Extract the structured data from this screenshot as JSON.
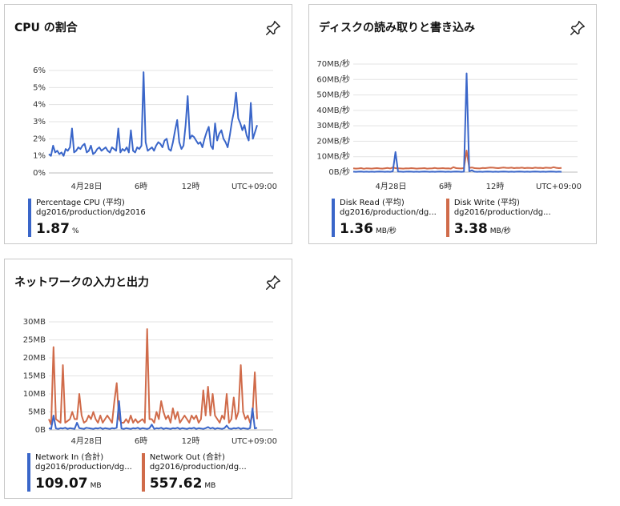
{
  "tiles": [
    {
      "title": "CPU の割合",
      "pin_icon": "pin-icon",
      "timezone": "UTC+09:00",
      "chart_data": {
        "type": "line",
        "x_ticks": [
          "4月28日",
          "6時",
          "12時"
        ],
        "y_ticks": [
          "6%",
          "5%",
          "4%",
          "3%",
          "2%",
          "1%",
          "0%"
        ],
        "ylim": [
          0,
          6
        ],
        "series": [
          {
            "name": "Percentage CPU (平均)",
            "color": "#3a66c9",
            "values": [
              1.1,
              1.0,
              1.6,
              1.2,
              1.3,
              1.1,
              1.2,
              1.0,
              1.4,
              1.3,
              1.5,
              2.6,
              1.2,
              1.3,
              1.5,
              1.4,
              1.6,
              1.7,
              1.2,
              1.3,
              1.6,
              1.1,
              1.2,
              1.4,
              1.5,
              1.3,
              1.4,
              1.5,
              1.3,
              1.2,
              1.5,
              1.4,
              1.3,
              2.6,
              1.2,
              1.4,
              1.3,
              1.5,
              1.2,
              2.5,
              1.3,
              1.2,
              1.5,
              1.4,
              1.6,
              5.9,
              1.8,
              1.3,
              1.4,
              1.5,
              1.3,
              1.6,
              1.8,
              1.7,
              1.5,
              1.9,
              2.0,
              1.4,
              1.3,
              1.8,
              2.5,
              3.1,
              1.8,
              1.4,
              1.6,
              2.8,
              4.5,
              2.0,
              2.2,
              2.1,
              1.9,
              1.7,
              1.8,
              1.5,
              2.0,
              2.4,
              2.7,
              1.6,
              1.4,
              2.9,
              1.9,
              2.3,
              2.5,
              2.0,
              1.8,
              1.5,
              2.2,
              3.0,
              3.6,
              4.7,
              3.2,
              2.9,
              2.5,
              2.8,
              2.2,
              1.9,
              4.1,
              2.0,
              2.4,
              2.8
            ]
          }
        ]
      },
      "legend": [
        {
          "name": "Percentage CPU (平均)",
          "resource": "dg2016/production/dg2016",
          "value": "1.87",
          "unit": "%",
          "color": "#3a66c9"
        }
      ]
    },
    {
      "title": "ディスクの読み取りと書き込み",
      "pin_icon": "pin-icon",
      "timezone": "UTC+09:00",
      "chart_data": {
        "type": "line",
        "x_ticks": [
          "4月28日",
          "6時",
          "12時"
        ],
        "y_ticks": [
          "70MB/秒",
          "60MB/秒",
          "50MB/秒",
          "40MB/秒",
          "30MB/秒",
          "20MB/秒",
          "10MB/秒",
          "0B/秒"
        ],
        "ylim": [
          0,
          70
        ],
        "series": [
          {
            "name": "Disk Read (平均)",
            "color": "#3a66c9",
            "values": [
              0.3,
              0.2,
              0.3,
              0.4,
              0.2,
              0.3,
              0.2,
              0.3,
              0.2,
              0.3,
              0.4,
              0.3,
              0.2,
              0.3,
              0.2,
              0.5,
              13,
              0.4,
              0.3,
              0.2,
              0.3,
              0.4,
              0.3,
              0.2,
              0.3,
              0.2,
              0.3,
              0.4,
              0.3,
              0.2,
              0.3,
              0.2,
              0.3,
              0.4,
              0.3,
              0.2,
              0.3,
              0.2,
              0.3,
              0.4,
              0.3,
              0.2,
              0.3,
              64,
              0.5,
              1.2,
              0.3,
              0.2,
              0.3,
              0.2,
              0.3,
              0.4,
              0.3,
              0.2,
              0.3,
              0.2,
              0.3,
              0.4,
              0.3,
              0.2,
              0.3,
              0.2,
              0.3,
              0.4,
              0.3,
              0.2,
              0.3,
              0.2,
              0.3,
              0.4,
              0.3,
              0.2,
              0.3,
              0.2,
              0.3,
              0.4,
              0.3,
              0.2,
              0.3,
              0.2
            ]
          },
          {
            "name": "Disk Write (平均)",
            "color": "#d06b4a",
            "values": [
              2.5,
              2.3,
              2.4,
              2.6,
              2.2,
              2.5,
              2.4,
              2.3,
              2.5,
              2.6,
              2.4,
              2.3,
              2.5,
              2.7,
              2.4,
              3.0,
              2.6,
              2.5,
              2.4,
              2.3,
              2.5,
              2.4,
              2.6,
              2.5,
              2.3,
              2.4,
              2.5,
              2.6,
              2.3,
              2.4,
              2.5,
              2.7,
              2.4,
              2.5,
              2.6,
              2.4,
              2.5,
              2.3,
              3.2,
              2.6,
              2.5,
              2.4,
              2.6,
              14,
              2.8,
              3.0,
              2.6,
              2.5,
              2.4,
              2.7,
              2.6,
              2.8,
              3.0,
              2.9,
              2.7,
              2.6,
              2.8,
              3.0,
              2.8,
              2.7,
              2.9,
              2.6,
              2.8,
              2.7,
              2.9,
              2.6,
              2.8,
              2.7,
              2.6,
              2.9,
              2.7,
              2.8,
              2.6,
              2.9,
              2.8,
              2.7,
              3.2,
              2.8,
              2.6,
              2.7
            ]
          }
        ]
      },
      "legend": [
        {
          "name": "Disk Read (平均)",
          "resource": "dg2016/production/dg...",
          "value": "1.36",
          "unit": "MB/秒",
          "color": "#3a66c9"
        },
        {
          "name": "Disk Write (平均)",
          "resource": "dg2016/production/dg...",
          "value": "3.38",
          "unit": "MB/秒",
          "color": "#d06b4a"
        }
      ]
    },
    {
      "title": "ネットワークの入力と出力",
      "pin_icon": "pin-icon",
      "timezone": "UTC+09:00",
      "chart_data": {
        "type": "line",
        "x_ticks": [
          "4月28日",
          "6時",
          "12時"
        ],
        "y_ticks": [
          "30MB",
          "25MB",
          "20MB",
          "15MB",
          "10MB",
          "5MB",
          "0B"
        ],
        "ylim": [
          0,
          30
        ],
        "series": [
          {
            "name": "Network In (合計)",
            "color": "#3a66c9",
            "values": [
              0.5,
              0.3,
              4,
              0.4,
              0.3,
              0.5,
              0.4,
              0.6,
              0.3,
              0.5,
              0.4,
              0.3,
              2,
              0.5,
              0.4,
              0.3,
              0.6,
              0.5,
              0.4,
              0.3,
              0.5,
              0.4,
              0.6,
              0.3,
              0.5,
              0.4,
              0.3,
              0.5,
              0.4,
              0.6,
              8,
              0.4,
              0.3,
              0.5,
              0.4,
              0.3,
              0.5,
              0.4,
              0.6,
              0.3,
              0.5,
              0.4,
              0.3,
              0.5,
              1.5,
              0.3,
              0.5,
              0.4,
              0.6,
              0.3,
              0.5,
              0.4,
              0.3,
              0.5,
              0.4,
              0.6,
              0.3,
              0.5,
              0.4,
              0.3,
              0.5,
              0.4,
              0.6,
              0.3,
              0.5,
              0.4,
              0.3,
              0.5,
              0.8,
              0.4,
              0.6,
              0.3,
              0.5,
              0.4,
              0.3,
              0.5,
              1.2,
              0.4,
              0.3,
              0.5,
              0.4,
              0.6,
              0.3,
              0.5,
              0.4,
              0.3,
              0.5,
              6,
              0.4,
              0.6
            ]
          },
          {
            "name": "Network Out (合計)",
            "color": "#d06b4a",
            "values": [
              3,
              1.5,
              23,
              3,
              2.5,
              2,
              18,
              2,
              2.5,
              3,
              5,
              3,
              3,
              10,
              4,
              2,
              2.5,
              4,
              3,
              5,
              3,
              2,
              4,
              2,
              3,
              4,
              3,
              2,
              8,
              13,
              3,
              2,
              2,
              3,
              2,
              4,
              2,
              3,
              2,
              2.5,
              3,
              2,
              28,
              3,
              3,
              2,
              5,
              3,
              8,
              5,
              3,
              4,
              2,
              6,
              3,
              5,
              2,
              3,
              4,
              3,
              2,
              4,
              3,
              4,
              2,
              3,
              11,
              4,
              12,
              4,
              10,
              4,
              3,
              2,
              4,
              3,
              10,
              2,
              3,
              9,
              3,
              5,
              18,
              5,
              3,
              4,
              2,
              4,
              16,
              3
            ]
          }
        ]
      },
      "legend": [
        {
          "name": "Network In (合計)",
          "resource": "dg2016/production/dg...",
          "value": "109.07",
          "unit": "MB",
          "color": "#3a66c9"
        },
        {
          "name": "Network Out (合計)",
          "resource": "dg2016/production/dg...",
          "value": "557.62",
          "unit": "MB",
          "color": "#d06b4a"
        }
      ]
    }
  ]
}
